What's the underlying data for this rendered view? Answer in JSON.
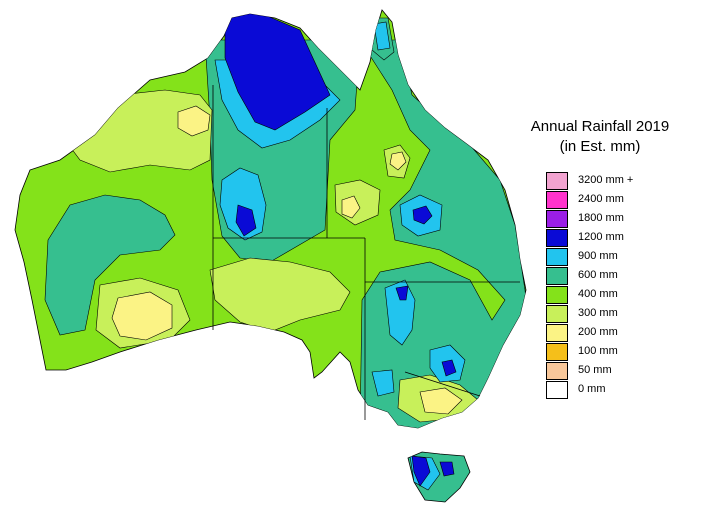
{
  "title_line1": "Annual Rainfall 2019",
  "title_line2": "(in Est. mm)",
  "legend": [
    {
      "label": "3200 mm +",
      "color": "#f2a3d0"
    },
    {
      "label": "2400 mm",
      "color": "#ff33cc"
    },
    {
      "label": "1800 mm",
      "color": "#9b1ee6"
    },
    {
      "label": "1200 mm",
      "color": "#0a0ad6"
    },
    {
      "label": "900 mm",
      "color": "#22c4ee"
    },
    {
      "label": "600 mm",
      "color": "#36bf8f"
    },
    {
      "label": "400 mm",
      "color": "#84e21a"
    },
    {
      "label": "300 mm",
      "color": "#c8f05a"
    },
    {
      "label": "200 mm",
      "color": "#fbf385"
    },
    {
      "label": "100 mm",
      "color": "#f5bf1a"
    },
    {
      "label": "50 mm",
      "color": "#f8c79a"
    },
    {
      "label": "0 mm",
      "color": "#ffffff"
    }
  ]
}
